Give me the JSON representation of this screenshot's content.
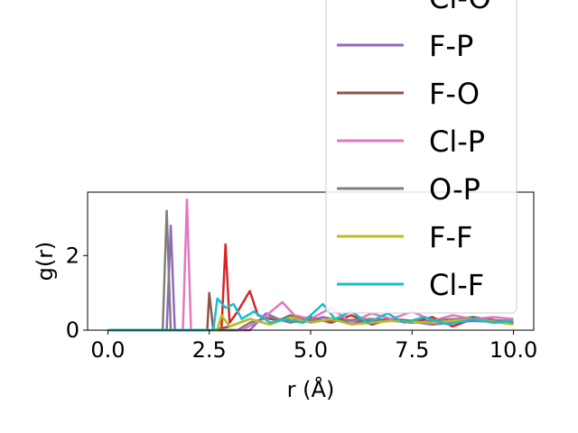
{
  "chart_data": {
    "type": "line",
    "title": "",
    "xlabel": "r (Å)",
    "ylabel": "g(r)",
    "xlim": [
      -0.5,
      10.5
    ],
    "ylim": [
      0,
      3.7
    ],
    "x_ticks": [
      0.0,
      2.5,
      5.0,
      7.5,
      10.0
    ],
    "x_tick_labels": [
      "0.0",
      "2.5",
      "5.0",
      "7.5",
      "10.0"
    ],
    "y_ticks": [
      0,
      2
    ],
    "y_tick_labels": [
      "0",
      "2"
    ],
    "grid": false,
    "legend_placement": "upper-right",
    "series": [
      {
        "name": "Cl-O",
        "color": "#d62728",
        "points": [
          [
            0,
            0
          ],
          [
            2.8,
            0
          ],
          [
            2.9,
            2.3
          ],
          [
            3.0,
            0.2
          ],
          [
            3.2,
            0.5
          ],
          [
            3.5,
            1.05
          ],
          [
            3.7,
            0.4
          ],
          [
            4.0,
            0.3
          ],
          [
            4.5,
            0.25
          ],
          [
            5.0,
            0.35
          ],
          [
            5.5,
            0.2
          ],
          [
            6.0,
            0.4
          ],
          [
            6.5,
            0.15
          ],
          [
            7.0,
            0.3
          ],
          [
            7.5,
            0.2
          ],
          [
            8.0,
            0.35
          ],
          [
            8.5,
            0.1
          ],
          [
            9.0,
            0.3
          ],
          [
            9.5,
            0.2
          ],
          [
            10.0,
            0.25
          ]
        ]
      },
      {
        "name": "F-P",
        "color": "#9467bd",
        "points": [
          [
            0,
            0
          ],
          [
            1.45,
            0
          ],
          [
            1.55,
            2.8
          ],
          [
            1.65,
            0
          ],
          [
            3.5,
            0
          ],
          [
            3.9,
            0.45
          ],
          [
            4.2,
            0.3
          ],
          [
            4.8,
            0.2
          ],
          [
            5.3,
            0.35
          ],
          [
            6.0,
            0.2
          ],
          [
            7.0,
            0.3
          ],
          [
            8.0,
            0.15
          ],
          [
            9.0,
            0.25
          ],
          [
            10.0,
            0.2
          ]
        ]
      },
      {
        "name": "F-O",
        "color": "#8c564b",
        "points": [
          [
            0,
            0
          ],
          [
            2.45,
            0
          ],
          [
            2.5,
            1.0
          ],
          [
            2.6,
            0
          ],
          [
            3.0,
            0.1
          ],
          [
            3.5,
            0.3
          ],
          [
            4.0,
            0.15
          ],
          [
            4.5,
            0.4
          ],
          [
            5.0,
            0.2
          ],
          [
            5.5,
            0.3
          ],
          [
            6.0,
            0.25
          ],
          [
            7.0,
            0.3
          ],
          [
            8.0,
            0.2
          ],
          [
            9.0,
            0.35
          ],
          [
            10.0,
            0.2
          ]
        ]
      },
      {
        "name": "Cl-P",
        "color": "#e377c2",
        "points": [
          [
            0,
            0
          ],
          [
            1.85,
            0
          ],
          [
            1.95,
            3.5
          ],
          [
            2.05,
            0
          ],
          [
            3.3,
            0
          ],
          [
            3.8,
            0.3
          ],
          [
            4.3,
            0.75
          ],
          [
            4.6,
            0.4
          ],
          [
            5.0,
            0.3
          ],
          [
            5.5,
            0.6
          ],
          [
            6.0,
            0.2
          ],
          [
            6.5,
            0.45
          ],
          [
            7.0,
            0.3
          ],
          [
            7.5,
            0.5
          ],
          [
            8.0,
            0.25
          ],
          [
            8.5,
            0.4
          ],
          [
            9.0,
            0.3
          ],
          [
            9.5,
            0.35
          ],
          [
            10.0,
            0.3
          ]
        ]
      },
      {
        "name": "O-P",
        "color": "#7f7f7f",
        "points": [
          [
            0,
            0
          ],
          [
            1.35,
            0
          ],
          [
            1.45,
            3.2
          ],
          [
            1.55,
            0
          ],
          [
            3.2,
            0
          ],
          [
            3.5,
            0.2
          ],
          [
            4.0,
            0.35
          ],
          [
            4.5,
            0.2
          ],
          [
            5.0,
            0.3
          ],
          [
            5.5,
            0.25
          ],
          [
            6.5,
            0.3
          ],
          [
            7.5,
            0.2
          ],
          [
            8.5,
            0.3
          ],
          [
            10.0,
            0.25
          ]
        ]
      },
      {
        "name": "F-F",
        "color": "#bcbd22",
        "points": [
          [
            0,
            0
          ],
          [
            2.7,
            0
          ],
          [
            2.8,
            0.4
          ],
          [
            3.0,
            0.1
          ],
          [
            3.5,
            0.3
          ],
          [
            4.0,
            0.15
          ],
          [
            4.5,
            0.35
          ],
          [
            5.0,
            0.2
          ],
          [
            5.5,
            0.3
          ],
          [
            6.0,
            0.15
          ],
          [
            7.0,
            0.25
          ],
          [
            8.0,
            0.2
          ],
          [
            9.0,
            0.3
          ],
          [
            10.0,
            0.15
          ]
        ]
      },
      {
        "name": "Cl-F",
        "color": "#17becf",
        "points": [
          [
            0,
            0
          ],
          [
            2.6,
            0
          ],
          [
            2.7,
            0.85
          ],
          [
            2.9,
            0.6
          ],
          [
            3.1,
            0.7
          ],
          [
            3.3,
            0.3
          ],
          [
            3.6,
            0.5
          ],
          [
            4.0,
            0.2
          ],
          [
            4.4,
            0.3
          ],
          [
            4.8,
            0.2
          ],
          [
            5.3,
            0.7
          ],
          [
            5.6,
            0.3
          ],
          [
            6.0,
            0.5
          ],
          [
            6.4,
            0.2
          ],
          [
            6.9,
            0.45
          ],
          [
            7.3,
            0.2
          ],
          [
            7.8,
            0.35
          ],
          [
            8.4,
            0.15
          ],
          [
            9.0,
            0.3
          ],
          [
            9.5,
            0.2
          ],
          [
            10.0,
            0.25
          ]
        ]
      }
    ]
  }
}
